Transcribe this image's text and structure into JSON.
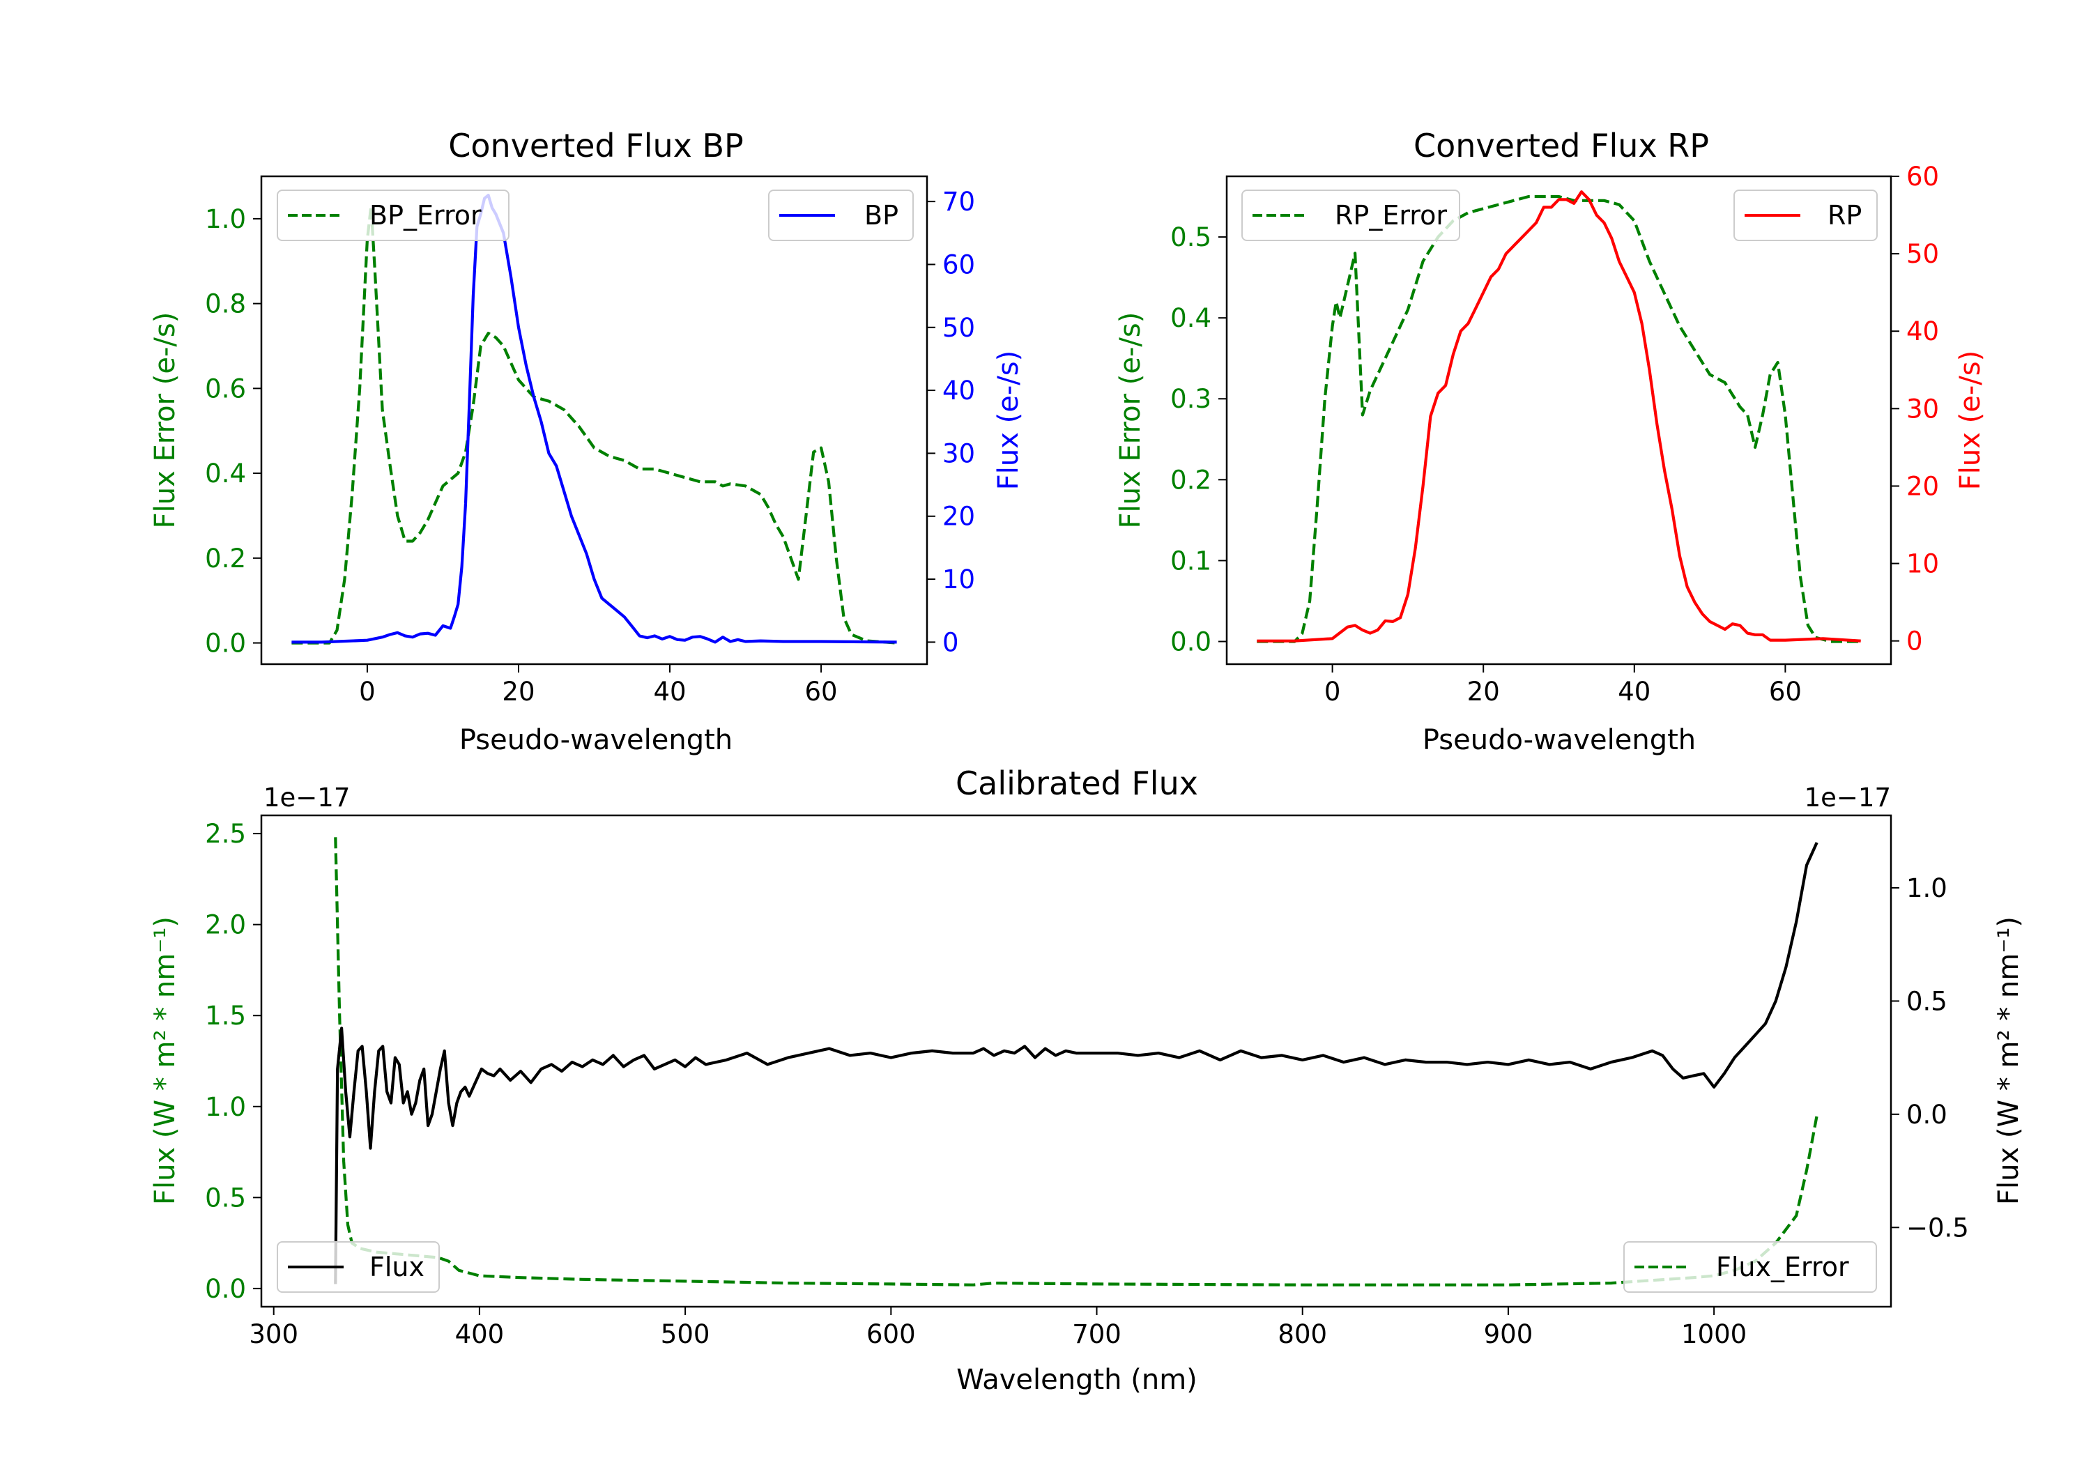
{
  "colors": {
    "green": "#008000",
    "blue": "#0000ff",
    "red": "#ff0000",
    "black": "#000000"
  },
  "chart_data": [
    {
      "id": "bp",
      "type": "line",
      "title": "Converted Flux BP",
      "xlabel": "Pseudo-wavelength",
      "xlim": [
        -14,
        74
      ],
      "xticks": [
        0,
        20,
        40,
        60
      ],
      "y_left": {
        "label": "Flux Error (e-/s)",
        "lim": [
          -0.05,
          1.1
        ],
        "ticks": [
          0.0,
          0.2,
          0.4,
          0.6,
          0.8,
          1.0
        ],
        "tick_labels": [
          "0.0",
          "0.2",
          "0.4",
          "0.6",
          "0.8",
          "1.0"
        ],
        "color": "#008000"
      },
      "y_right": {
        "label": "Flux (e-/s)",
        "lim": [
          -3.5,
          74
        ],
        "ticks": [
          0,
          10,
          20,
          30,
          40,
          50,
          60,
          70
        ],
        "tick_labels": [
          "0",
          "10",
          "20",
          "30",
          "40",
          "50",
          "60",
          "70"
        ],
        "color": "#0000ff"
      },
      "legends": [
        {
          "label": "BP_Error",
          "position": "upper left",
          "style": "dashed",
          "color": "#008000"
        },
        {
          "label": "BP",
          "position": "upper right",
          "style": "solid",
          "color": "#0000ff"
        }
      ],
      "series": [
        {
          "name": "BP_Error",
          "axis": "left",
          "style": "dashed",
          "color": "#008000",
          "x": [
            -10,
            -5,
            -4,
            -3,
            -2,
            -1,
            0,
            0.5,
            1,
            2,
            3,
            4,
            5,
            6,
            7,
            8,
            9,
            10,
            12,
            13,
            14,
            15,
            16,
            17,
            18,
            19,
            20,
            21,
            22,
            24,
            26,
            28,
            30,
            32,
            34,
            36,
            38,
            40,
            42,
            44,
            46,
            47,
            48,
            50,
            52,
            53,
            54,
            55,
            56,
            57,
            58,
            59,
            60,
            61,
            62,
            63,
            64,
            66,
            70
          ],
          "y": [
            0,
            0,
            0.03,
            0.15,
            0.35,
            0.6,
            0.95,
            1.03,
            0.88,
            0.55,
            0.42,
            0.3,
            0.24,
            0.24,
            0.26,
            0.29,
            0.33,
            0.37,
            0.4,
            0.45,
            0.56,
            0.7,
            0.73,
            0.72,
            0.7,
            0.66,
            0.62,
            0.6,
            0.58,
            0.57,
            0.55,
            0.51,
            0.46,
            0.44,
            0.43,
            0.41,
            0.41,
            0.4,
            0.39,
            0.38,
            0.38,
            0.37,
            0.375,
            0.37,
            0.35,
            0.32,
            0.28,
            0.25,
            0.2,
            0.15,
            0.3,
            0.45,
            0.46,
            0.38,
            0.2,
            0.06,
            0.02,
            0.005,
            0
          ]
        },
        {
          "name": "BP",
          "axis": "right",
          "style": "solid",
          "color": "#0000ff",
          "x": [
            -10,
            -6,
            0,
            2,
            3,
            4,
            5,
            6,
            7,
            8,
            9,
            10,
            11,
            11.5,
            12,
            12.5,
            13,
            13.5,
            14,
            14.5,
            15,
            15.5,
            16,
            16.5,
            17,
            18,
            19,
            20,
            21,
            22,
            23,
            24,
            25,
            26,
            27,
            28,
            29,
            30,
            31,
            32,
            33,
            34,
            35,
            36,
            37,
            38,
            39,
            40,
            41,
            42,
            43,
            44,
            45,
            46,
            47,
            48,
            49,
            50,
            52,
            55,
            60,
            70
          ],
          "y": [
            0,
            0,
            0.3,
            0.8,
            1.2,
            1.5,
            1,
            0.8,
            1.3,
            1.4,
            1.1,
            2.6,
            2.2,
            4,
            6,
            12,
            22,
            38,
            55,
            66,
            68,
            70.5,
            71,
            69,
            68,
            65,
            58,
            50,
            44,
            39,
            35,
            30,
            28,
            24,
            20,
            17,
            14,
            10,
            7,
            6,
            5,
            4,
            2.5,
            1,
            0.7,
            1,
            0.5,
            0.9,
            0.4,
            0.3,
            0.8,
            0.9,
            0.5,
            0,
            0.8,
            0.1,
            0.4,
            0.1,
            0.2,
            0.1,
            0.1,
            0
          ]
        }
      ]
    },
    {
      "id": "rp",
      "type": "line",
      "title": "Converted Flux RP",
      "xlabel": "Pseudo-wavelength",
      "xlim": [
        -14,
        74
      ],
      "xticks": [
        0,
        20,
        40,
        60
      ],
      "y_left": {
        "label": "Flux Error (e-/s)",
        "lim": [
          -0.028,
          0.575
        ],
        "ticks": [
          0.0,
          0.1,
          0.2,
          0.3,
          0.4,
          0.5
        ],
        "tick_labels": [
          "0.0",
          "0.1",
          "0.2",
          "0.3",
          "0.4",
          "0.5"
        ],
        "color": "#008000"
      },
      "y_right": {
        "label": "Flux (e-/s)",
        "lim": [
          -3,
          60
        ],
        "ticks": [
          0,
          10,
          20,
          30,
          40,
          50,
          60
        ],
        "tick_labels": [
          "0",
          "10",
          "20",
          "30",
          "40",
          "50",
          "60"
        ],
        "color": "#ff0000"
      },
      "legends": [
        {
          "label": "RP_Error",
          "position": "upper left",
          "style": "dashed",
          "color": "#008000"
        },
        {
          "label": "RP",
          "position": "upper right",
          "style": "solid",
          "color": "#ff0000"
        }
      ],
      "series": [
        {
          "name": "RP_Error",
          "axis": "left",
          "style": "dashed",
          "color": "#008000",
          "x": [
            -10,
            -5,
            -4,
            -3,
            -2,
            -1,
            0,
            0.5,
            1,
            2,
            3,
            3.5,
            4,
            5,
            6,
            8,
            10,
            12,
            14,
            16,
            18,
            20,
            22,
            24,
            26,
            28,
            30,
            32,
            34,
            36,
            38,
            40,
            42,
            44,
            46,
            48,
            50,
            52,
            54,
            55,
            56,
            57,
            58,
            59,
            60,
            61,
            62,
            63,
            64,
            66,
            70
          ],
          "y": [
            0,
            0,
            0.01,
            0.05,
            0.17,
            0.3,
            0.39,
            0.42,
            0.4,
            0.44,
            0.48,
            0.38,
            0.28,
            0.31,
            0.33,
            0.37,
            0.41,
            0.47,
            0.5,
            0.52,
            0.53,
            0.535,
            0.54,
            0.545,
            0.55,
            0.55,
            0.55,
            0.545,
            0.545,
            0.545,
            0.54,
            0.52,
            0.47,
            0.43,
            0.39,
            0.36,
            0.33,
            0.32,
            0.29,
            0.28,
            0.24,
            0.28,
            0.33,
            0.345,
            0.28,
            0.18,
            0.08,
            0.02,
            0.005,
            0,
            0
          ]
        },
        {
          "name": "RP",
          "axis": "right",
          "style": "solid",
          "color": "#ff0000",
          "x": [
            -10,
            -5,
            0,
            2,
            3,
            4,
            5,
            6,
            7,
            8,
            9,
            10,
            11,
            12,
            13,
            14,
            15,
            16,
            17,
            18,
            19,
            20,
            21,
            22,
            23,
            24,
            25,
            26,
            27,
            28,
            29,
            30,
            31,
            32,
            33,
            34,
            35,
            36,
            37,
            38,
            39,
            40,
            41,
            42,
            43,
            44,
            45,
            46,
            47,
            48,
            49,
            50,
            51,
            52,
            53,
            54,
            55,
            56,
            57,
            58,
            60,
            65,
            70
          ],
          "y": [
            0,
            0,
            0.3,
            1.8,
            2,
            1.4,
            1,
            1.4,
            2.6,
            2.5,
            3,
            6,
            12,
            20,
            29,
            32,
            33,
            37,
            40,
            41,
            43,
            45,
            47,
            48,
            50,
            51,
            52,
            53,
            54,
            56,
            56,
            57,
            57,
            56.5,
            58,
            57,
            55,
            54,
            52,
            49,
            47,
            45,
            41,
            35,
            28,
            22,
            17,
            11,
            7,
            5,
            3.5,
            2.5,
            2,
            1.5,
            2.2,
            2.0,
            1,
            0.8,
            0.8,
            0.1,
            0.1,
            0.3,
            0
          ]
        }
      ]
    },
    {
      "id": "calibrated",
      "type": "line",
      "title": "Calibrated Flux",
      "xlabel": "Wavelength (nm)",
      "xlim": [
        294,
        1086
      ],
      "xticks": [
        300,
        400,
        500,
        600,
        700,
        800,
        900,
        1000
      ],
      "y_left": {
        "label": "Flux (W * m² * nm⁻¹)",
        "lim": [
          -0.1,
          2.6
        ],
        "ticks": [
          0.0,
          0.5,
          1.0,
          1.5,
          2.0,
          2.5
        ],
        "tick_labels": [
          "0.0",
          "0.5",
          "1.0",
          "1.5",
          "2.0",
          "2.5"
        ],
        "offset_text": "1e−17",
        "color": "#008000"
      },
      "y_right": {
        "label": "Flux (W * m² * nm⁻¹)",
        "lim": [
          -0.85,
          1.32
        ],
        "ticks": [
          -0.5,
          0.0,
          0.5,
          1.0
        ],
        "tick_labels": [
          "−0.5",
          "0.0",
          "0.5",
          "1.0"
        ],
        "offset_text": "1e−17",
        "color": "#000000"
      },
      "legends": [
        {
          "label": "Flux",
          "position": "lower left",
          "style": "solid",
          "color": "#000000"
        },
        {
          "label": "Flux_Error",
          "position": "lower right",
          "style": "dashed",
          "color": "#008000"
        }
      ],
      "series": [
        {
          "name": "Flux_Error",
          "axis": "left",
          "style": "dashed",
          "color": "#008000",
          "x": [
            330,
            332,
            334,
            336,
            338,
            342,
            350,
            360,
            370,
            380,
            385,
            390,
            400,
            420,
            450,
            500,
            550,
            600,
            640,
            650,
            700,
            800,
            900,
            950,
            990,
            1000,
            1010,
            1020,
            1030,
            1040,
            1045,
            1050
          ],
          "y": [
            2.48,
            1.5,
            0.7,
            0.35,
            0.25,
            0.22,
            0.2,
            0.19,
            0.18,
            0.17,
            0.15,
            0.1,
            0.07,
            0.06,
            0.05,
            0.04,
            0.03,
            0.025,
            0.02,
            0.03,
            0.025,
            0.02,
            0.02,
            0.03,
            0.06,
            0.07,
            0.1,
            0.15,
            0.25,
            0.4,
            0.65,
            0.95
          ]
        },
        {
          "name": "Flux",
          "axis": "right",
          "style": "solid",
          "color": "#000000",
          "x": [
            330,
            331,
            333,
            335,
            337,
            339,
            341,
            343,
            345,
            347,
            349,
            351,
            353,
            355,
            357,
            359,
            361,
            363,
            365,
            367,
            369,
            371,
            373,
            375,
            377,
            379,
            381,
            383,
            385,
            387,
            389,
            391,
            393,
            395,
            398,
            401,
            404,
            407,
            410,
            415,
            420,
            425,
            430,
            435,
            440,
            445,
            450,
            455,
            460,
            465,
            470,
            475,
            480,
            485,
            490,
            495,
            500,
            505,
            510,
            520,
            530,
            540,
            550,
            560,
            570,
            580,
            590,
            600,
            610,
            620,
            630,
            640,
            645,
            650,
            655,
            660,
            665,
            670,
            675,
            680,
            685,
            690,
            700,
            710,
            720,
            730,
            740,
            750,
            760,
            770,
            780,
            790,
            800,
            810,
            820,
            830,
            840,
            850,
            860,
            870,
            880,
            890,
            900,
            910,
            920,
            930,
            940,
            950,
            960,
            970,
            975,
            980,
            985,
            990,
            995,
            1000,
            1005,
            1010,
            1015,
            1020,
            1025,
            1030,
            1035,
            1040,
            1045,
            1050
          ],
          "y": [
            -0.75,
            0.2,
            0.38,
            0.1,
            -0.1,
            0.1,
            0.28,
            0.3,
            0.1,
            -0.15,
            0.1,
            0.28,
            0.3,
            0.1,
            0.05,
            0.25,
            0.22,
            0.05,
            0.1,
            0.0,
            0.05,
            0.15,
            0.2,
            -0.05,
            0.0,
            0.1,
            0.2,
            0.28,
            0.05,
            -0.05,
            0.05,
            0.1,
            0.12,
            0.08,
            0.14,
            0.2,
            0.18,
            0.17,
            0.2,
            0.15,
            0.19,
            0.14,
            0.2,
            0.22,
            0.19,
            0.23,
            0.21,
            0.24,
            0.22,
            0.26,
            0.21,
            0.24,
            0.26,
            0.2,
            0.22,
            0.24,
            0.21,
            0.25,
            0.22,
            0.24,
            0.27,
            0.22,
            0.25,
            0.27,
            0.29,
            0.26,
            0.27,
            0.25,
            0.27,
            0.28,
            0.27,
            0.27,
            0.29,
            0.26,
            0.28,
            0.27,
            0.3,
            0.25,
            0.29,
            0.26,
            0.28,
            0.27,
            0.27,
            0.27,
            0.26,
            0.27,
            0.25,
            0.28,
            0.24,
            0.28,
            0.25,
            0.26,
            0.24,
            0.26,
            0.23,
            0.25,
            0.22,
            0.24,
            0.23,
            0.23,
            0.22,
            0.23,
            0.22,
            0.24,
            0.22,
            0.23,
            0.2,
            0.23,
            0.25,
            0.28,
            0.26,
            0.2,
            0.16,
            0.17,
            0.18,
            0.12,
            0.18,
            0.25,
            0.3,
            0.35,
            0.4,
            0.5,
            0.65,
            0.85,
            1.1,
            1.2
          ]
        }
      ]
    }
  ]
}
